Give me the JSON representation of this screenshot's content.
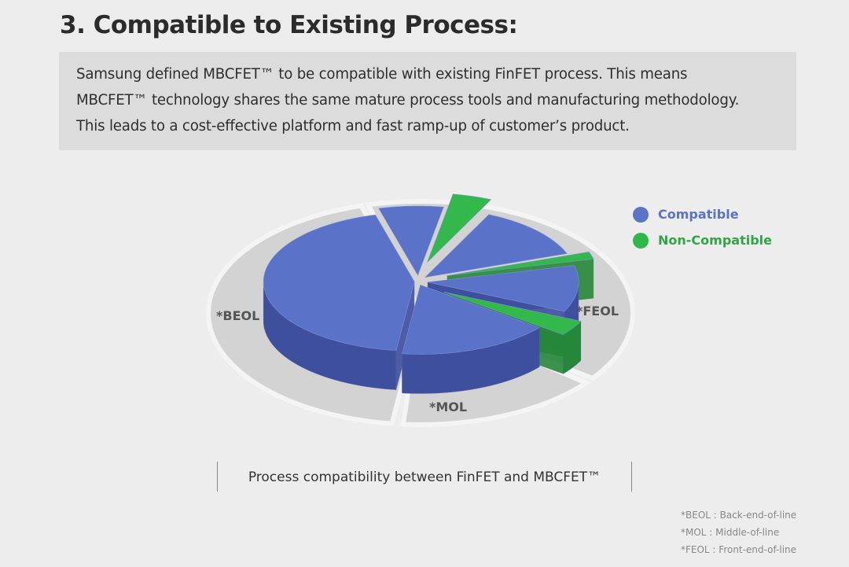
{
  "header": {
    "title": "3. Compatible to Existing Process:"
  },
  "description": {
    "lines": [
      "Samsung defined MBCFET™ to be compatible with existing FinFET process. This means",
      "MBCFET™ technology shares the same mature process tools and manufacturing methodology.",
      "This leads to a cost-effective platform and fast ramp-up of customer’s product."
    ]
  },
  "chart_data": {
    "type": "pie",
    "title": "Process compatibility between FinFET and MBCFET™",
    "legend": [
      {
        "label": "Compatible",
        "color": "#5a72c8"
      },
      {
        "label": "Non-Compatible",
        "color": "#2fb84a"
      }
    ],
    "legend_position": "top-right",
    "groups": [
      "*BEOL",
      "*MOL",
      "*FEOL"
    ],
    "slices": [
      {
        "group": "*FEOL",
        "status": "Compatible",
        "value": 6.9
      },
      {
        "group": "*FEOL",
        "status": "Non-Compatible",
        "value": 4.2
      },
      {
        "group": "*FEOL",
        "status": "Compatible",
        "value": 12.5
      },
      {
        "group": "*FEOL",
        "status": "Non-Compatible",
        "value": 1.7
      },
      {
        "group": "*FEOL",
        "status": "Compatible",
        "value": 10.8
      },
      {
        "group": "*FEOL",
        "status": "Non-Compatible",
        "value": 3.6
      },
      {
        "group": "*MOL",
        "status": "Compatible",
        "value": 16.4
      },
      {
        "group": "*BEOL",
        "status": "Compatible",
        "value": 43.9
      }
    ]
  },
  "footnotes": [
    "*BEOL : Back-end-of-line",
    "*MOL : Middle-of-line",
    "*FEOL : Front-end-of-line"
  ]
}
